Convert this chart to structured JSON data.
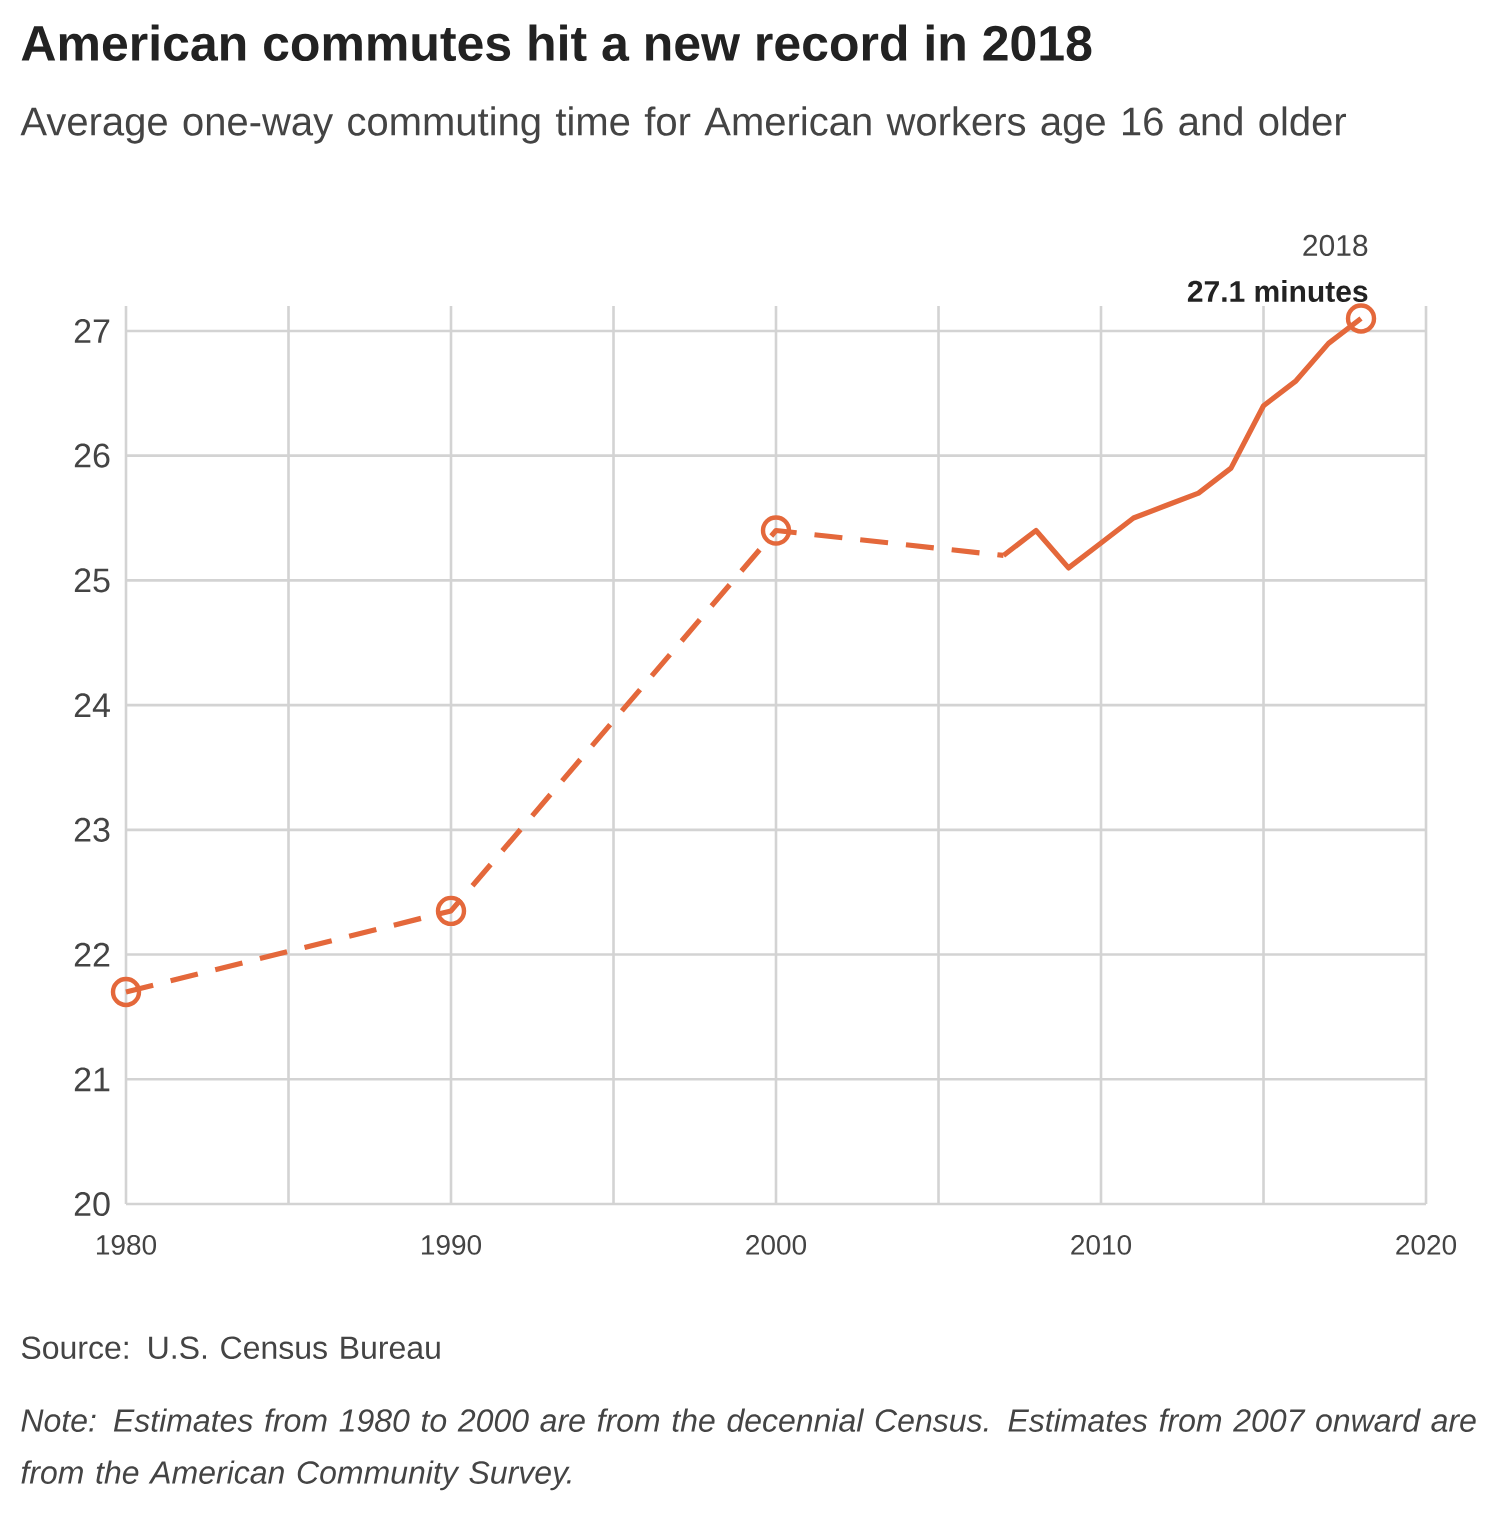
{
  "chart_data": {
    "type": "line",
    "title": "American commutes hit a new record in 2018",
    "subtitle": "Average one-way commuting time for American workers age 16 and older",
    "series": [
      {
        "type": "line",
        "color": "#e4683b",
        "line_style": "dashed",
        "marker": "none",
        "x": [
          1980,
          1990,
          2000,
          2007
        ],
        "values": [
          21.7,
          22.35,
          25.4,
          25.2
        ]
      },
      {
        "type": "line",
        "color": "#e4683b",
        "line_style": "solid",
        "marker": "none",
        "x": [
          2007,
          2008,
          2009,
          2010,
          2011,
          2012,
          2013,
          2014,
          2015,
          2016,
          2017,
          2018
        ],
        "values": [
          25.2,
          25.4,
          25.1,
          25.3,
          25.5,
          25.6,
          25.7,
          25.9,
          26.4,
          26.6,
          26.9,
          27.1
        ]
      },
      {
        "type": "scatter",
        "color": "#e4683b",
        "marker": "circle",
        "x": [
          1980,
          1990,
          2000,
          2018
        ],
        "values": [
          21.7,
          22.35,
          25.4,
          27.1
        ]
      }
    ],
    "xlim": [
      1980,
      2020
    ],
    "ylim": [
      20,
      27.2
    ],
    "xticks": [
      1980,
      {
        "value": 1985,
        "label": null
      },
      1990,
      {
        "value": 1995,
        "label": null
      },
      2000,
      {
        "value": 2005,
        "label": null
      },
      2010,
      {
        "value": 2015,
        "label": null
      },
      2020
    ],
    "yticks": [
      20,
      21,
      22,
      23,
      24,
      25,
      26,
      27
    ],
    "grid": true,
    "annotations": [
      {
        "text": "2018",
        "x": 2018,
        "y": 27.1
      },
      {
        "text": "27.1 minutes",
        "x": 2018,
        "y": 27.1
      },
      "Source: U.S. Census Bureau",
      "Note: Estimates from 1980 to 2000 are from the decennial Census. Estimates from 2007 onward are from the American Community Survey."
    ]
  }
}
